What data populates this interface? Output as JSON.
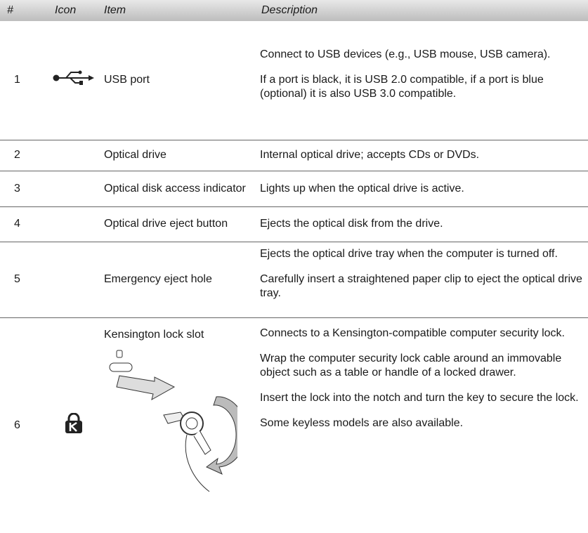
{
  "table": {
    "header": [
      "#",
      "Icon",
      "Item",
      "Description"
    ],
    "rows": [
      {
        "num": "1",
        "item": "USB port",
        "description": "Connect to USB devices (e.g., USB mouse, USB camera).",
        "notes": [
          [
            "If a port is black, it is USB 2.0 compatible, if a port is blue (optional) it is also USB 3.0 compatible."
          ]
        ]
      },
      {
        "num": "2",
        "item": "Optical drive",
        "description": "Internal optical drive; accepts CDs or DVDs.",
        "notes": []
      },
      {
        "num": "3",
        "item": "Optical disk access indicator",
        "description": "Lights up when the optical drive is active.",
        "notes": []
      },
      {
        "num": "4",
        "item": "Optical drive eject button",
        "description": "Ejects the optical disk from the drive.",
        "notes": []
      },
      {
        "num": "5",
        "item": "Emergency eject hole",
        "description": "Ejects the optical drive tray when the computer is turned off.",
        "notes": [
          [
            "Carefully insert a straightened paper clip to eject the optical drive tray."
          ]
        ]
      },
      {
        "num": "6",
        "item": "Kensington lock slot",
        "description": "Connects to a Kensington-compatible computer security lock.",
        "notes": [
          [
            "Wrap the computer security lock cable around an immovable object such as a table or handle of a locked drawer.",
            "Insert the lock into the notch and turn the key to secure the lock.",
            "Some keyless models are also available."
          ]
        ]
      }
    ]
  }
}
